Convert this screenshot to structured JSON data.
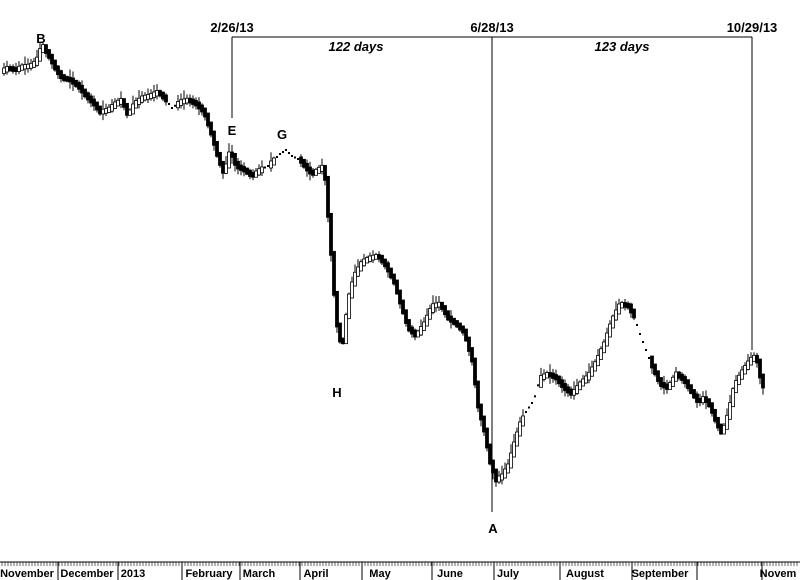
{
  "chart_data": {
    "type": "candlestick",
    "title": "",
    "xlabel": "",
    "ylabel": "",
    "grid": false,
    "months": [
      "November",
      "December",
      "2013",
      "February",
      "March",
      "April",
      "May",
      "June",
      "July",
      "August",
      "September",
      "Novem"
    ],
    "cycle_dates": [
      "2/26/13",
      "6/28/13",
      "10/29/13"
    ],
    "spans": [
      "122 days",
      "123 days"
    ],
    "points": [
      "B",
      "E",
      "G",
      "H",
      "A"
    ],
    "price_path": [
      [
        0,
        72
      ],
      [
        8,
        68
      ],
      [
        15,
        70
      ],
      [
        22,
        67
      ],
      [
        30,
        66
      ],
      [
        36,
        62
      ],
      [
        42,
        45
      ],
      [
        50,
        58
      ],
      [
        56,
        70
      ],
      [
        62,
        78
      ],
      [
        70,
        80
      ],
      [
        78,
        86
      ],
      [
        86,
        96
      ],
      [
        94,
        104
      ],
      [
        100,
        112
      ],
      [
        108,
        110
      ],
      [
        115,
        104
      ],
      [
        122,
        100
      ],
      [
        128,
        116
      ],
      [
        134,
        104
      ],
      [
        142,
        98
      ],
      [
        150,
        96
      ],
      [
        158,
        92
      ],
      [
        166,
        100
      ],
      [
        172,
        108
      ],
      [
        180,
        102
      ],
      [
        188,
        100
      ],
      [
        196,
        104
      ],
      [
        204,
        112
      ],
      [
        212,
        136
      ],
      [
        218,
        158
      ],
      [
        224,
        174
      ],
      [
        230,
        150
      ],
      [
        236,
        166
      ],
      [
        244,
        170
      ],
      [
        252,
        176
      ],
      [
        260,
        170
      ],
      [
        268,
        166
      ],
      [
        274,
        160
      ],
      [
        280,
        154
      ],
      [
        286,
        150
      ],
      [
        292,
        156
      ],
      [
        300,
        160
      ],
      [
        306,
        168
      ],
      [
        312,
        174
      ],
      [
        318,
        170
      ],
      [
        324,
        166
      ],
      [
        330,
        240
      ],
      [
        336,
        320
      ],
      [
        342,
        350
      ],
      [
        348,
        300
      ],
      [
        354,
        276
      ],
      [
        362,
        262
      ],
      [
        370,
        258
      ],
      [
        378,
        256
      ],
      [
        386,
        266
      ],
      [
        394,
        282
      ],
      [
        400,
        302
      ],
      [
        408,
        328
      ],
      [
        416,
        336
      ],
      [
        424,
        324
      ],
      [
        432,
        306
      ],
      [
        440,
        304
      ],
      [
        448,
        318
      ],
      [
        456,
        324
      ],
      [
        464,
        332
      ],
      [
        472,
        360
      ],
      [
        478,
        406
      ],
      [
        484,
        430
      ],
      [
        490,
        462
      ],
      [
        496,
        480
      ],
      [
        502,
        476
      ],
      [
        508,
        466
      ],
      [
        514,
        444
      ],
      [
        520,
        424
      ],
      [
        526,
        412
      ],
      [
        534,
        400
      ],
      [
        540,
        378
      ],
      [
        548,
        374
      ],
      [
        556,
        378
      ],
      [
        564,
        388
      ],
      [
        572,
        394
      ],
      [
        580,
        384
      ],
      [
        588,
        376
      ],
      [
        596,
        362
      ],
      [
        604,
        344
      ],
      [
        612,
        320
      ],
      [
        620,
        304
      ],
      [
        628,
        306
      ],
      [
        634,
        316
      ],
      [
        640,
        334
      ],
      [
        646,
        350
      ],
      [
        652,
        366
      ],
      [
        660,
        384
      ],
      [
        668,
        388
      ],
      [
        676,
        374
      ],
      [
        684,
        380
      ],
      [
        690,
        390
      ],
      [
        698,
        402
      ],
      [
        704,
        398
      ],
      [
        710,
        406
      ],
      [
        716,
        422
      ],
      [
        722,
        434
      ],
      [
        728,
        414
      ],
      [
        734,
        386
      ],
      [
        742,
        372
      ],
      [
        750,
        360
      ],
      [
        756,
        356
      ],
      [
        762,
        386
      ]
    ]
  }
}
